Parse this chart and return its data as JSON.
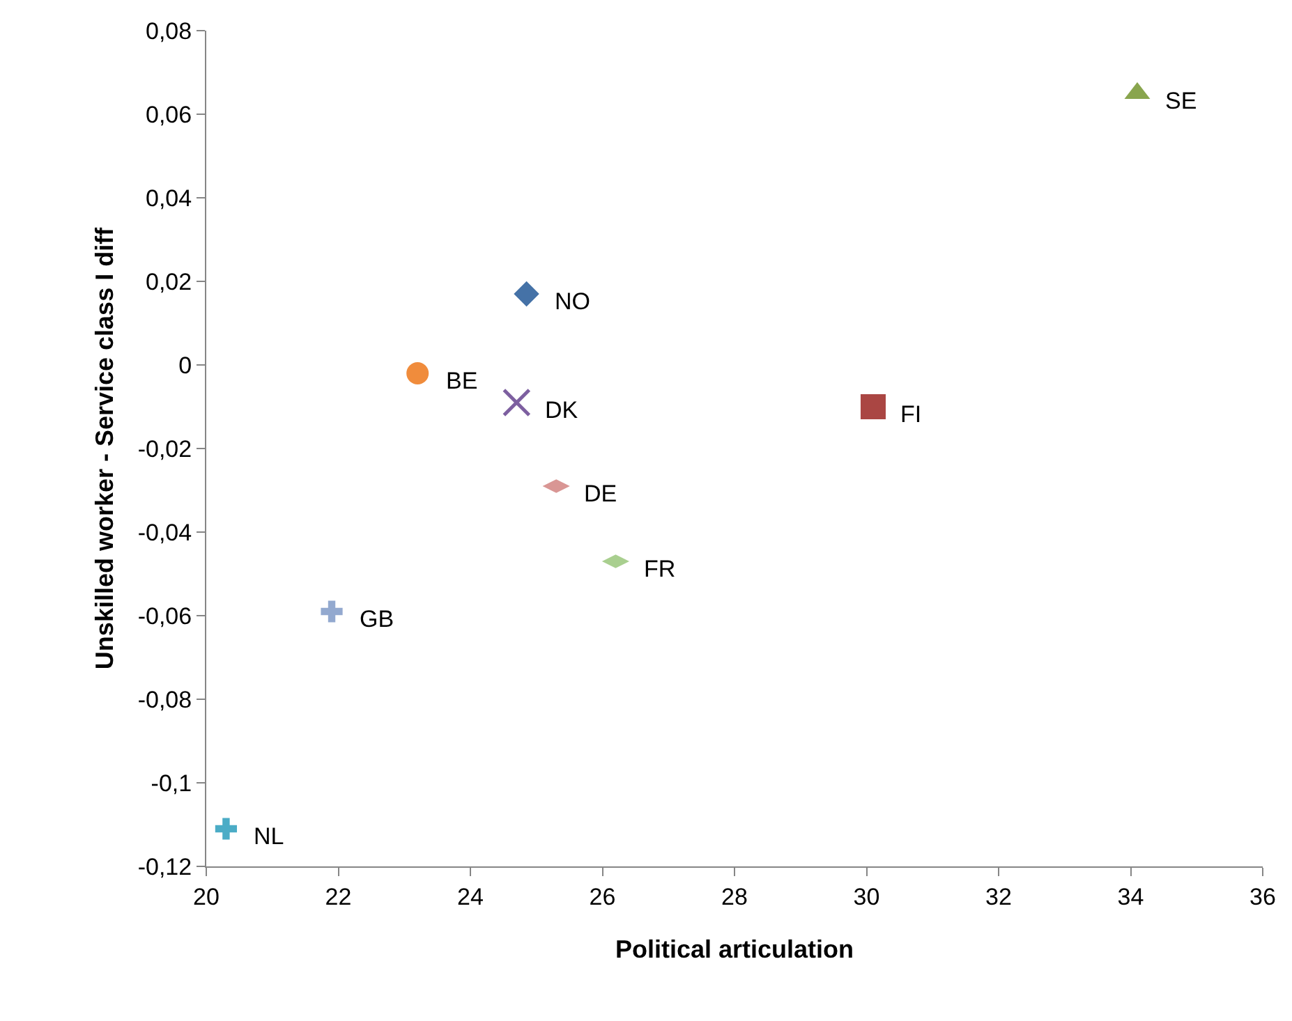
{
  "chart_data": {
    "type": "scatter",
    "xlabel": "Political articulation",
    "ylabel": "Unskilled worker - Service class I diff",
    "xlim": [
      20,
      36
    ],
    "xticks": [
      20,
      22,
      24,
      26,
      28,
      30,
      32,
      34,
      36
    ],
    "ylim": [
      -0.12,
      0.08
    ],
    "yticks": [
      {
        "value": -0.12,
        "label": "-0,12"
      },
      {
        "value": -0.1,
        "label": "-0,1"
      },
      {
        "value": -0.08,
        "label": "-0,08"
      },
      {
        "value": -0.06,
        "label": "-0,06"
      },
      {
        "value": -0.04,
        "label": "-0,04"
      },
      {
        "value": -0.02,
        "label": "-0,02"
      },
      0,
      {
        "value": 0.02,
        "label": "0,02"
      },
      {
        "value": 0.04,
        "label": "0,04"
      },
      {
        "value": 0.06,
        "label": "0,06"
      },
      {
        "value": 0.08,
        "label": "0,08"
      }
    ],
    "grid": false,
    "legend": false,
    "series": [
      {
        "name": "NO",
        "color": "#4572a7",
        "marker": "diamond",
        "x": [
          24.85
        ],
        "values": [
          0.017
        ]
      },
      {
        "name": "FI",
        "color": "#aa4643",
        "marker": "square",
        "x": [
          30.1
        ],
        "values": [
          -0.01
        ]
      },
      {
        "name": "SE",
        "color": "#89a54e",
        "marker": "triangle",
        "x": [
          34.1
        ],
        "values": [
          0.065
        ]
      },
      {
        "name": "DK",
        "color": "#7d5fa0",
        "marker": "x",
        "x": [
          24.7
        ],
        "values": [
          -0.009
        ]
      },
      {
        "name": "NL",
        "color": "#4bacc6",
        "marker": "cross",
        "x": [
          20.3
        ],
        "values": [
          -0.111
        ]
      },
      {
        "name": "BE",
        "color": "#f08c3c",
        "marker": "circle",
        "x": [
          23.2
        ],
        "values": [
          -0.002
        ]
      },
      {
        "name": "GB",
        "color": "#93a9cf",
        "marker": "cross",
        "x": [
          21.9
        ],
        "values": [
          -0.059
        ]
      },
      {
        "name": "DE",
        "color": "#d99694",
        "x": [
          25.3
        ],
        "values": [
          -0.029
        ]
      },
      {
        "name": "FR",
        "color": "#a9cf8f",
        "x": [
          26.2
        ],
        "values": [
          -0.047
        ]
      }
    ]
  }
}
